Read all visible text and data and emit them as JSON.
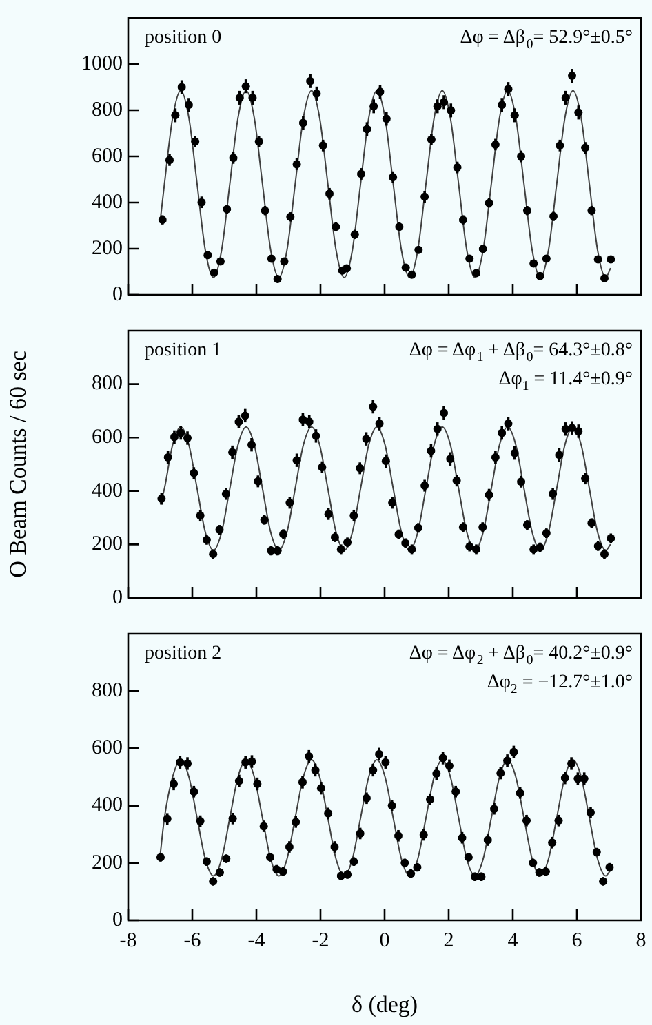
{
  "chart_data": [
    {
      "type": "scatter",
      "marker": "circle",
      "tick_labels": "y",
      "xlim": [
        -8,
        8
      ],
      "xticks": [
        -8,
        -6,
        -4,
        -2,
        0,
        2,
        4,
        6,
        8
      ],
      "ylim": [
        0,
        1200
      ],
      "yticks": [
        0,
        200,
        400,
        600,
        800,
        1000
      ],
      "annotations": [
        "position 0",
        "Δφ = Δβ$_{0}$= 52.9°±0.5°"
      ],
      "series": [
        {
          "color": "#000000",
          "x": [
            -6.93,
            -6.71,
            -6.53,
            -6.33,
            -6.11,
            -5.91,
            -5.71,
            -5.52,
            -5.32,
            -5.12,
            -4.92,
            -4.72,
            -4.52,
            -4.33,
            -4.12,
            -3.92,
            -3.73,
            -3.53,
            -3.34,
            -3.13,
            -2.94,
            -2.74,
            -2.54,
            -2.32,
            -2.12,
            -1.92,
            -1.72,
            -1.52,
            -1.32,
            -1.18,
            -0.93,
            -0.73,
            -0.55,
            -0.34,
            -0.14,
            0.06,
            0.26,
            0.46,
            0.66,
            0.85,
            1.06,
            1.25,
            1.46,
            1.65,
            1.85,
            2.07,
            2.27,
            2.45,
            2.65,
            2.86,
            3.07,
            3.26,
            3.46,
            3.66,
            3.86,
            4.06,
            4.26,
            4.45,
            4.65,
            4.85,
            5.05,
            5.27,
            5.47,
            5.65,
            5.85,
            6.05,
            6.26,
            6.46,
            6.66,
            6.86,
            7.06
          ],
          "values": [
            325,
            584,
            778,
            900,
            823,
            664,
            401,
            172,
            96,
            145,
            371,
            593,
            854,
            904,
            854,
            664,
            365,
            157,
            69,
            145,
            338,
            566,
            745,
            926,
            872,
            647,
            438,
            295,
            105,
            115,
            262,
            524,
            718,
            817,
            880,
            763,
            510,
            295,
            118,
            87,
            195,
            425,
            673,
            817,
            835,
            799,
            552,
            325,
            157,
            94,
            199,
            398,
            651,
            823,
            892,
            778,
            600,
            365,
            136,
            81,
            157,
            340,
            647,
            854,
            949,
            790,
            637,
            365,
            154,
            72,
            154
          ],
          "errors": [
            20,
            25,
            30,
            30,
            30,
            25,
            25,
            15,
            15,
            15,
            20,
            25,
            30,
            30,
            30,
            25,
            20,
            15,
            15,
            15,
            20,
            25,
            30,
            30,
            30,
            25,
            25,
            20,
            15,
            15,
            20,
            25,
            30,
            30,
            30,
            30,
            25,
            20,
            15,
            15,
            15,
            25,
            25,
            30,
            30,
            30,
            25,
            20,
            15,
            15,
            15,
            20,
            25,
            30,
            30,
            30,
            25,
            20,
            15,
            15,
            15,
            20,
            25,
            30,
            30,
            30,
            25,
            20,
            15,
            15,
            15
          ]
        },
        {
          "type": "line",
          "marker": "none",
          "color": "#404040",
          "x": [
            -7.0,
            -6.87,
            -6.615,
            -6.36,
            -6.105,
            -5.85,
            -5.595,
            -5.34,
            -5.085,
            -4.83,
            -4.575,
            -4.32,
            -4.065,
            -3.81,
            -3.555,
            -3.3,
            -3.045,
            -2.79,
            -2.535,
            -2.28,
            -2.025,
            -1.77,
            -1.515,
            -1.26,
            -1.005,
            -0.75,
            -0.495,
            -0.24,
            0.015,
            0.27,
            0.525,
            0.78,
            1.035,
            1.29,
            1.545,
            1.8,
            2.055,
            2.31,
            2.565,
            2.82,
            3.075,
            3.33,
            3.585,
            3.84,
            4.095,
            4.35,
            4.605,
            4.86,
            5.115,
            5.37,
            5.625,
            5.88,
            6.135,
            6.39,
            6.645,
            6.9,
            7.05
          ],
          "values": [
            322,
            480,
            766,
            885,
            766,
            480,
            194,
            75,
            194,
            480,
            766,
            885,
            766,
            480,
            194,
            75,
            194,
            480,
            766,
            885,
            766,
            480,
            194,
            75,
            194,
            480,
            766,
            885,
            766,
            480,
            194,
            75,
            194,
            480,
            766,
            885,
            766,
            480,
            194,
            75,
            194,
            480,
            766,
            885,
            766,
            480,
            194,
            75,
            194,
            480,
            766,
            885,
            766,
            480,
            194,
            75,
            116
          ]
        }
      ]
    },
    {
      "type": "scatter",
      "marker": "circle",
      "tick_labels": "y",
      "xlim": [
        -8,
        8
      ],
      "xticks": [
        -8,
        -6,
        -4,
        -2,
        0,
        2,
        4,
        6,
        8
      ],
      "ylim": [
        0,
        1000
      ],
      "yticks": [
        0,
        200,
        400,
        600,
        800
      ],
      "ylabel": "O Beam Counts / 60 sec",
      "annotations": [
        "position 1",
        "Δφ = Δφ$_{1}$ + Δβ$_{0}$= 64.3°±0.8°",
        "Δφ$_{1}$ = 11.4°±0.9°"
      ],
      "series": [
        {
          "color": "#000000",
          "x": [
            -6.96,
            -6.76,
            -6.56,
            -6.36,
            -6.15,
            -5.95,
            -5.75,
            -5.55,
            -5.35,
            -5.15,
            -4.95,
            -4.75,
            -4.55,
            -4.35,
            -4.15,
            -3.95,
            -3.75,
            -3.54,
            -3.34,
            -3.16,
            -2.96,
            -2.74,
            -2.55,
            -2.35,
            -2.14,
            -1.95,
            -1.75,
            -1.55,
            -1.36,
            -1.16,
            -0.96,
            -0.77,
            -0.57,
            -0.36,
            -0.16,
            0.04,
            0.24,
            0.44,
            0.65,
            0.85,
            1.05,
            1.25,
            1.45,
            1.65,
            1.85,
            2.05,
            2.25,
            2.45,
            2.65,
            2.86,
            3.06,
            3.26,
            3.46,
            3.66,
            3.86,
            4.06,
            4.26,
            4.45,
            4.65,
            4.85,
            5.05,
            5.25,
            5.45,
            5.65,
            5.85,
            6.05,
            6.26,
            6.46,
            6.66,
            6.86,
            7.06
          ],
          "values": [
            371,
            526,
            602,
            617,
            598,
            467,
            308,
            217,
            164,
            255,
            389,
            545,
            659,
            682,
            573,
            436,
            292,
            177,
            177,
            239,
            356,
            515,
            667,
            659,
            606,
            489,
            314,
            227,
            182,
            208,
            308,
            485,
            595,
            715,
            652,
            512,
            356,
            238,
            205,
            182,
            262,
            420,
            550,
            632,
            692,
            520,
            439,
            265,
            192,
            182,
            265,
            386,
            526,
            617,
            652,
            542,
            435,
            273,
            182,
            189,
            242,
            389,
            535,
            632,
            636,
            624,
            447,
            280,
            194,
            164,
            223
          ],
          "errors": [
            22,
            25,
            25,
            25,
            25,
            22,
            22,
            18,
            18,
            18,
            22,
            25,
            25,
            25,
            25,
            22,
            18,
            18,
            18,
            18,
            22,
            25,
            25,
            25,
            25,
            22,
            22,
            18,
            18,
            18,
            22,
            22,
            25,
            25,
            25,
            25,
            22,
            18,
            18,
            18,
            18,
            22,
            25,
            25,
            25,
            25,
            22,
            18,
            18,
            18,
            18,
            22,
            25,
            25,
            25,
            25,
            22,
            18,
            18,
            18,
            18,
            22,
            25,
            25,
            25,
            25,
            22,
            18,
            18,
            18,
            18
          ]
        },
        {
          "type": "line",
          "marker": "none",
          "color": "#404040",
          "x": [
            -7.0,
            -6.87,
            -6.615,
            -6.36,
            -6.105,
            -5.85,
            -5.595,
            -5.34,
            -5.085,
            -4.83,
            -4.575,
            -4.32,
            -4.065,
            -3.81,
            -3.555,
            -3.3,
            -3.045,
            -2.79,
            -2.535,
            -2.28,
            -2.025,
            -1.77,
            -1.515,
            -1.26,
            -1.005,
            -0.75,
            -0.495,
            -0.24,
            0.015,
            0.27,
            0.525,
            0.78,
            1.035,
            1.29,
            1.545,
            1.8,
            2.055,
            2.31,
            2.565,
            2.82,
            3.075,
            3.33,
            3.585,
            3.84,
            4.095,
            4.35,
            4.605,
            4.86,
            5.115,
            5.37,
            5.625,
            5.88,
            6.135,
            6.39,
            6.645,
            6.9,
            7.05
          ],
          "values": [
            350,
            409,
            572,
            640,
            572,
            409,
            246,
            178,
            246,
            409,
            572,
            640,
            572,
            409,
            246,
            178,
            246,
            409,
            572,
            640,
            572,
            409,
            246,
            178,
            246,
            409,
            572,
            640,
            572,
            409,
            246,
            178,
            246,
            409,
            572,
            640,
            572,
            409,
            246,
            178,
            246,
            409,
            572,
            640,
            572,
            409,
            246,
            178,
            246,
            409,
            572,
            640,
            572,
            409,
            246,
            178,
            201
          ]
        }
      ]
    },
    {
      "type": "scatter",
      "marker": "circle",
      "xlim": [
        -8,
        8
      ],
      "xticks": [
        -8,
        -6,
        -4,
        -2,
        0,
        2,
        4,
        6,
        8
      ],
      "ylim": [
        0,
        1000
      ],
      "yticks": [
        0,
        200,
        400,
        600,
        800
      ],
      "xlabel": "δ (deg)",
      "annotations": [
        "position 2",
        "Δφ = Δφ$_{2}$ + Δβ$_{0}$= 40.2°±0.9°",
        "Δφ$_{2}$ = −12.7°±1.0°"
      ],
      "series": [
        {
          "color": "#000000",
          "x": [
            -6.99,
            -6.78,
            -6.58,
            -6.38,
            -6.15,
            -5.95,
            -5.75,
            -5.55,
            -5.35,
            -5.14,
            -4.94,
            -4.74,
            -4.54,
            -4.34,
            -4.14,
            -3.97,
            -3.77,
            -3.57,
            -3.37,
            -3.17,
            -2.97,
            -2.77,
            -2.56,
            -2.36,
            -2.16,
            -1.98,
            -1.76,
            -1.56,
            -1.36,
            -1.16,
            -0.96,
            -0.76,
            -0.56,
            -0.36,
            -0.17,
            0.03,
            0.23,
            0.43,
            0.63,
            0.82,
            1.02,
            1.22,
            1.42,
            1.62,
            1.82,
            2.02,
            2.22,
            2.42,
            2.62,
            2.82,
            3.02,
            3.22,
            3.42,
            3.62,
            3.83,
            4.03,
            4.23,
            4.43,
            4.63,
            4.83,
            5.03,
            5.23,
            5.43,
            5.63,
            5.83,
            6.03,
            6.23,
            6.43,
            6.62,
            6.82,
            7.02
          ],
          "values": [
            220,
            354,
            476,
            551,
            547,
            449,
            346,
            205,
            136,
            167,
            215,
            355,
            486,
            551,
            554,
            476,
            328,
            220,
            178,
            170,
            256,
            343,
            482,
            572,
            524,
            461,
            373,
            256,
            155,
            160,
            205,
            303,
            426,
            524,
            580,
            551,
            400,
            295,
            200,
            163,
            185,
            298,
            422,
            512,
            566,
            539,
            449,
            288,
            220,
            152,
            152,
            280,
            389,
            514,
            557,
            587,
            444,
            348,
            200,
            167,
            170,
            271,
            348,
            497,
            547,
            494,
            494,
            376,
            238,
            136,
            185
          ],
          "errors": [
            15,
            20,
            22,
            22,
            22,
            20,
            20,
            15,
            15,
            15,
            15,
            20,
            22,
            22,
            22,
            22,
            20,
            15,
            15,
            15,
            20,
            20,
            22,
            22,
            22,
            22,
            20,
            20,
            15,
            15,
            15,
            20,
            20,
            22,
            22,
            22,
            20,
            20,
            15,
            15,
            15,
            20,
            20,
            22,
            22,
            22,
            20,
            20,
            15,
            15,
            15,
            20,
            20,
            22,
            22,
            22,
            20,
            20,
            15,
            15,
            15,
            20,
            20,
            22,
            22,
            22,
            22,
            20,
            15,
            15,
            15
          ]
        },
        {
          "type": "line",
          "marker": "none",
          "color": "#404040",
          "x": [
            -7.0,
            -6.87,
            -6.615,
            -6.36,
            -6.105,
            -5.85,
            -5.595,
            -5.34,
            -5.085,
            -4.83,
            -4.575,
            -4.32,
            -4.065,
            -3.81,
            -3.555,
            -3.3,
            -3.045,
            -2.79,
            -2.535,
            -2.28,
            -2.025,
            -1.77,
            -1.515,
            -1.26,
            -1.005,
            -0.75,
            -0.495,
            -0.24,
            0.015,
            0.27,
            0.525,
            0.78,
            1.035,
            1.29,
            1.545,
            1.8,
            2.055,
            2.31,
            2.565,
            2.82,
            3.075,
            3.33,
            3.585,
            3.84,
            4.095,
            4.35,
            4.605,
            4.86,
            5.115,
            5.37,
            5.625,
            5.88,
            6.135,
            6.39,
            6.645,
            6.9,
            7.05
          ],
          "values": [
            230,
            357,
            500,
            560,
            500,
            357,
            214,
            155,
            214,
            357,
            500,
            560,
            500,
            357,
            214,
            155,
            214,
            357,
            500,
            560,
            500,
            357,
            214,
            155,
            214,
            357,
            500,
            560,
            500,
            357,
            214,
            155,
            214,
            357,
            500,
            560,
            500,
            357,
            214,
            155,
            214,
            357,
            500,
            560,
            500,
            357,
            214,
            155,
            214,
            357,
            500,
            560,
            500,
            357,
            214,
            155,
            175
          ]
        }
      ]
    }
  ]
}
